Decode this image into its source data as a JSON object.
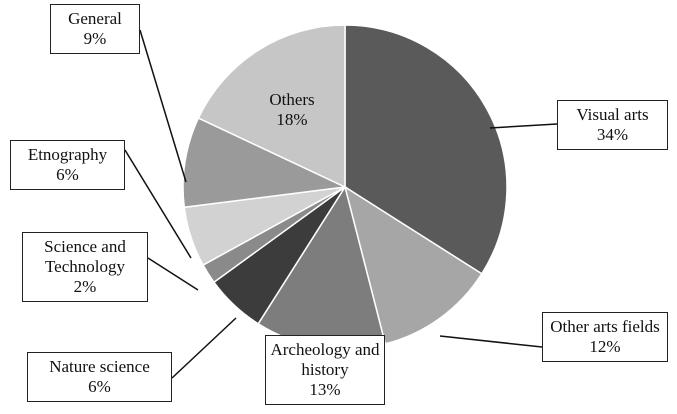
{
  "chart_data": {
    "type": "pie",
    "categories": [
      "Visual arts",
      "Other arts fields",
      "Archeology and history",
      "Nature science",
      "Science and Technology",
      "Etnography",
      "General",
      "Others"
    ],
    "values": [
      34,
      12,
      13,
      6,
      2,
      6,
      9,
      18
    ],
    "value_labels": [
      "34%",
      "12%",
      "13%",
      "6%",
      "2%",
      "6%",
      "9%",
      "18%"
    ],
    "colors": [
      "#5a5a5a",
      "#a6a6a6",
      "#7d7d7d",
      "#3c3c3c",
      "#8a8a8a",
      "#d2d2d2",
      "#9a9a9a",
      "#c6c6c6"
    ]
  }
}
